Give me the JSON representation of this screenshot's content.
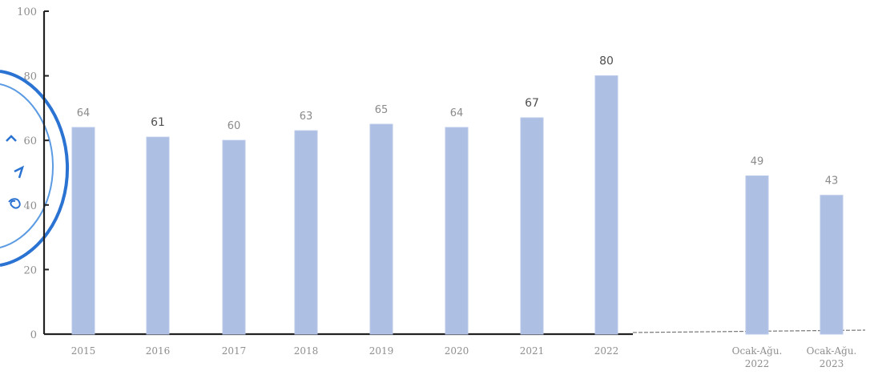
{
  "chart_data": {
    "type": "bar",
    "categories": [
      [
        "2015"
      ],
      [
        "2016"
      ],
      [
        "2017"
      ],
      [
        "2018"
      ],
      [
        "2019"
      ],
      [
        "2020"
      ],
      [
        "2021"
      ],
      [
        "2022"
      ],
      [
        "Ocak-Ağu.",
        "2022"
      ],
      [
        "Ocak-Ağu.",
        "2023"
      ]
    ],
    "values": [
      64,
      61,
      60,
      63,
      65,
      64,
      67,
      80,
      49,
      43
    ],
    "value_labels": [
      "64",
      "61",
      "60",
      "63",
      "65",
      "64",
      "67",
      "80",
      "49",
      "43"
    ],
    "yticks": [
      0,
      20,
      40,
      60,
      80,
      100
    ],
    "ytick_labels": [
      "0",
      "20",
      "40",
      "60",
      "80",
      "100"
    ],
    "ylim": [
      0,
      100
    ],
    "title": "",
    "xlabel": "",
    "ylabel": "",
    "grid": false,
    "legend": false,
    "bar_color": "#aebfe4",
    "axis_color": "#222222"
  }
}
